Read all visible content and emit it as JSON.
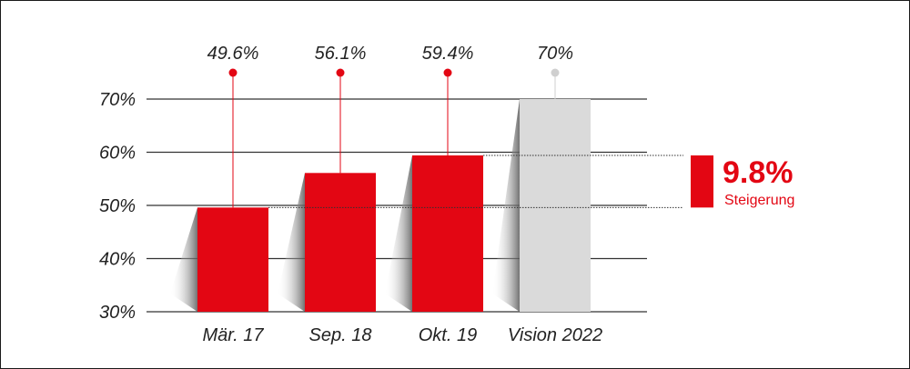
{
  "chart_data": {
    "type": "bar",
    "categories": [
      "Mär. 17",
      "Sep. 18",
      "Okt. 19",
      "Vision 2022"
    ],
    "values": [
      49.6,
      56.1,
      59.4,
      70
    ],
    "value_labels": [
      "49.6%",
      "56.1%",
      "59.4%",
      "70%"
    ],
    "y_ticks": [
      "30%",
      "40%",
      "50%",
      "60%",
      "70%"
    ],
    "ylim": [
      30,
      70
    ],
    "grid": true,
    "colors": {
      "actual": "#e30613",
      "vision": "#dadada",
      "vision_marker": "#cfcfcf",
      "gridline": "#333333"
    },
    "annotation": {
      "value": "9.8%",
      "label": "Steigerung",
      "from": 49.6,
      "to": 59.4,
      "color": "#e30613"
    }
  }
}
